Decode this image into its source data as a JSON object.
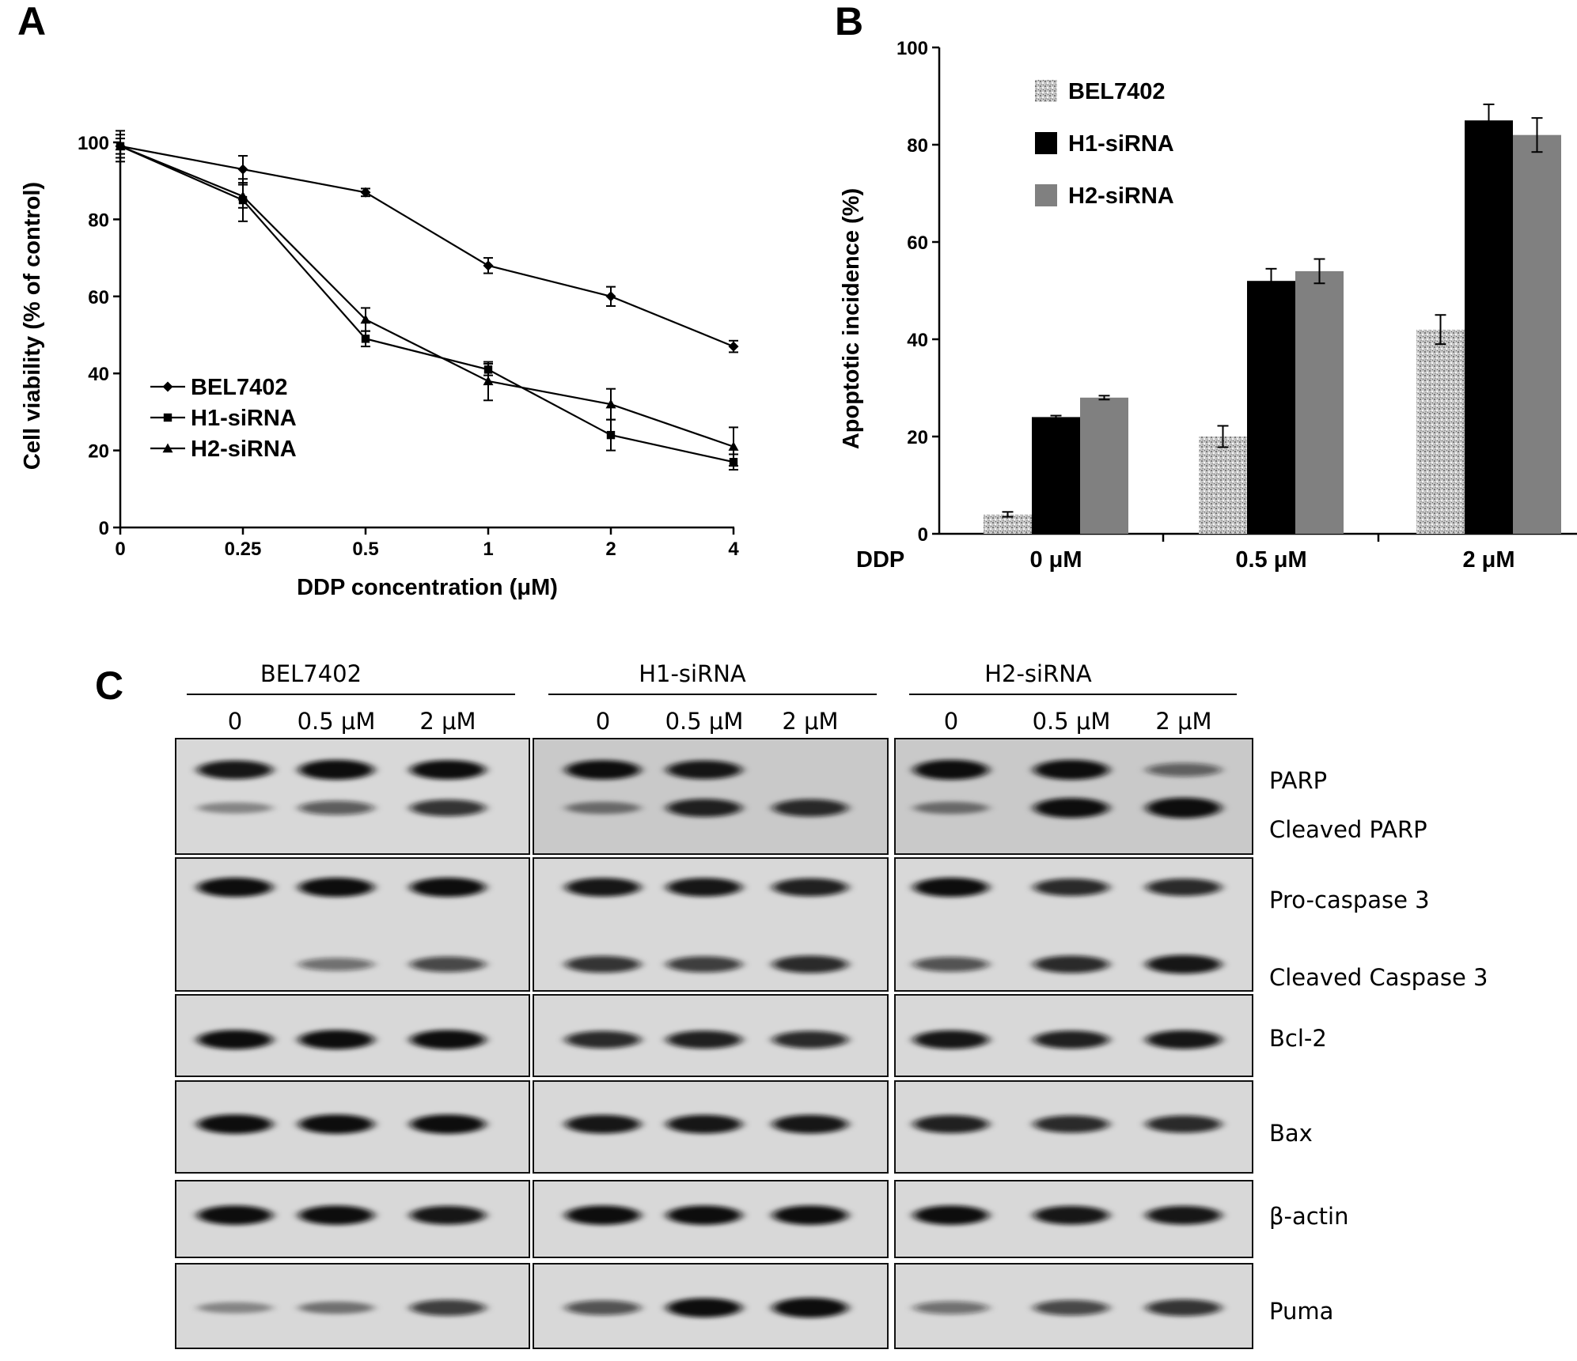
{
  "panels": {
    "a": "A",
    "b": "B",
    "c": "C"
  },
  "chart_data": [
    {
      "type": "line",
      "panel": "A",
      "x": [
        "0",
        "0.25",
        "0.5",
        "1",
        "2",
        "4"
      ],
      "xlabel": "DDP concentration (μM)",
      "ylabel": "Cell viability (% of control)",
      "ylim": [
        0,
        100
      ],
      "yticks": [
        0,
        20,
        40,
        60,
        80,
        100
      ],
      "legend": "bottom-left",
      "grid": false,
      "series": [
        {
          "name": "BEL7402",
          "marker": "diamond",
          "values": [
            99,
            93,
            87,
            68,
            60,
            47
          ],
          "errors": [
            3,
            3.5,
            1,
            2,
            2.5,
            1.5
          ]
        },
        {
          "name": "H1-siRNA",
          "marker": "square",
          "values": [
            99,
            85,
            49,
            41,
            24,
            17
          ],
          "errors": [
            4,
            5.5,
            2,
            1.5,
            4,
            2
          ]
        },
        {
          "name": "H2-siRNA",
          "marker": "triangle",
          "values": [
            99,
            86,
            54,
            38,
            32,
            21
          ],
          "errors": [
            2,
            3,
            3,
            5,
            4,
            5
          ]
        }
      ]
    },
    {
      "type": "bar",
      "panel": "B",
      "xlabel_prefix": "DDP",
      "categories": [
        "0 μM",
        "0.5 μM",
        "2 μM"
      ],
      "ylabel": "Apoptotic incidence (%)",
      "ylim": [
        0,
        100
      ],
      "yticks": [
        0,
        20,
        40,
        60,
        80,
        100
      ],
      "legend": "top-left",
      "grid": false,
      "series": [
        {
          "name": "BEL7402",
          "pattern": "speckled-gray",
          "values": [
            4,
            20,
            42
          ],
          "errors": [
            0.5,
            2.2,
            3
          ]
        },
        {
          "name": "H1-siRNA",
          "color": "#000000",
          "values": [
            24,
            52,
            85
          ],
          "errors": [
            0.3,
            2.5,
            3.3
          ]
        },
        {
          "name": "H2-siRNA",
          "color": "#808080",
          "values": [
            28,
            54,
            82
          ],
          "errors": [
            0.4,
            2.5,
            3.5
          ]
        }
      ]
    },
    {
      "type": "western_blot",
      "panel": "C",
      "groups": [
        {
          "name": "BEL7402",
          "lanes": [
            "0",
            "0.5 μM",
            "2 μM"
          ]
        },
        {
          "name": "H1-siRNA",
          "lanes": [
            "0",
            "0.5 μM",
            "2 μM"
          ]
        },
        {
          "name": "H2-siRNA",
          "lanes": [
            "0",
            "0.5 μM",
            "2 μM"
          ]
        }
      ],
      "rows": [
        {
          "labels": [
            "PARP",
            "Cleaved PARP"
          ],
          "bands": [
            [
              [
                0.85,
                0.95,
                0.9
              ],
              [
                0.25,
                0.5,
                0.7
              ]
            ],
            [
              [
                0.9,
                0.85,
                0.0
              ],
              [
                0.35,
                0.8,
                0.75
              ]
            ],
            [
              [
                0.95,
                0.95,
                0.45
              ],
              [
                0.35,
                0.95,
                1.0
              ]
            ]
          ]
        },
        {
          "labels": [
            "Pro-caspase 3",
            "Cleaved Caspase 3"
          ],
          "bands": [
            [
              [
                0.9,
                0.9,
                0.9
              ],
              [
                0.0,
                0.4,
                0.6
              ]
            ],
            [
              [
                0.85,
                0.85,
                0.8
              ],
              [
                0.7,
                0.65,
                0.75
              ]
            ],
            [
              [
                0.9,
                0.75,
                0.75
              ],
              [
                0.55,
                0.75,
                0.85
              ]
            ]
          ]
        },
        {
          "labels": [
            "Bcl-2"
          ],
          "bands": [
            [
              [
                0.9,
                0.9,
                0.9
              ]
            ],
            [
              [
                0.75,
                0.8,
                0.75
              ]
            ],
            [
              [
                0.85,
                0.8,
                0.85
              ]
            ]
          ]
        },
        {
          "labels": [
            "Bax"
          ],
          "bands": [
            [
              [
                0.9,
                0.9,
                0.9
              ]
            ],
            [
              [
                0.85,
                0.85,
                0.85
              ]
            ],
            [
              [
                0.8,
                0.75,
                0.75
              ]
            ]
          ]
        },
        {
          "labels": [
            "β-actin"
          ],
          "bands": [
            [
              [
                0.9,
                0.9,
                0.85
              ]
            ],
            [
              [
                0.9,
                0.9,
                0.9
              ]
            ],
            [
              [
                0.9,
                0.85,
                0.85
              ]
            ]
          ]
        },
        {
          "labels": [
            "Puma"
          ],
          "bands": [
            [
              [
                0.25,
                0.35,
                0.65
              ]
            ],
            [
              [
                0.55,
                0.9,
                0.95
              ]
            ],
            [
              [
                0.4,
                0.6,
                0.7
              ]
            ]
          ]
        }
      ]
    }
  ]
}
